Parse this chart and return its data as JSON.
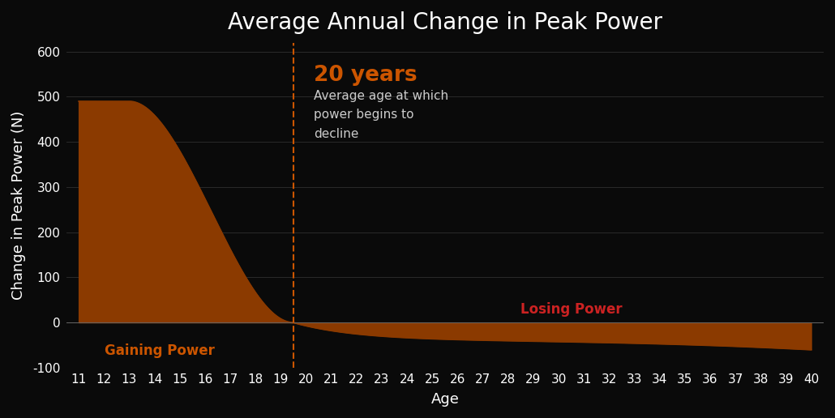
{
  "title": "Average Annual Change in Peak Power",
  "xlabel": "Age",
  "ylabel": "Change in Peak Power (N)",
  "background_color": "#0a0a0a",
  "text_color": "#ffffff",
  "grid_color": "#2a2a2a",
  "fill_color": "#8B3A00",
  "line_color": "#8B3A00",
  "dashed_line_color": "#cc5500",
  "dashed_line_x": 19.5,
  "annotation_20years_text": "20 years",
  "annotation_20years_color": "#cc5500",
  "annotation_desc_text": "Average age at which\npower begins to\ndecline",
  "annotation_desc_color": "#cccccc",
  "gaining_power_text": "Gaining Power",
  "gaining_power_color": "#cc5500",
  "losing_power_text": "Losing Power",
  "losing_power_color": "#cc2222",
  "ylim": [
    -100,
    620
  ],
  "yticks": [
    -100,
    0,
    100,
    200,
    300,
    400,
    500,
    600
  ],
  "xlim_left": 10.5,
  "xlim_right": 40.5,
  "title_fontsize": 20,
  "axis_label_fontsize": 13,
  "tick_fontsize": 11
}
